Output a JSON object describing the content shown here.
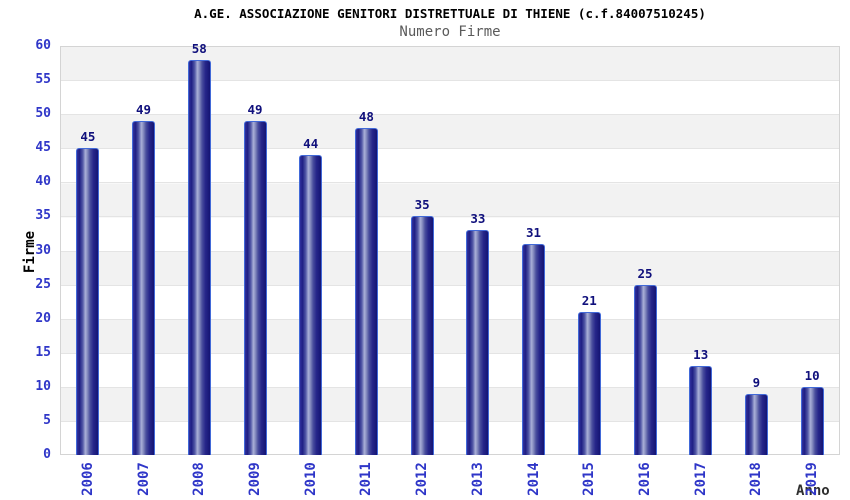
{
  "chart_data": {
    "type": "bar",
    "title": "A.GE. ASSOCIAZIONE GENITORI DISTRETTUALE DI THIENE (c.f.84007510245)",
    "subtitle": "Numero Firme",
    "xlabel": "Anno",
    "ylabel": "Firme",
    "categories": [
      "2006",
      "2007",
      "2008",
      "2009",
      "2010",
      "2011",
      "2012",
      "2013",
      "2014",
      "2015",
      "2016",
      "2017",
      "2018",
      "2019"
    ],
    "values": [
      45,
      49,
      58,
      49,
      44,
      48,
      35,
      33,
      31,
      21,
      25,
      13,
      9,
      10
    ],
    "ylim": [
      0,
      60
    ],
    "ytick_step": 5,
    "grid": "horizontal-bands",
    "legend": "none",
    "colors": {
      "bar_dark": "#1e1e84",
      "bar_highlight": "#aab0d8",
      "bar_border": "#4169d8",
      "axis_tick_label": "#2f36c8",
      "value_label": "#10107c",
      "band_gray": "#f2f2f2",
      "band_white": "#ffffff",
      "plot_border": "#d4d4d4",
      "subtitle_gray": "#5a5a5a"
    }
  }
}
